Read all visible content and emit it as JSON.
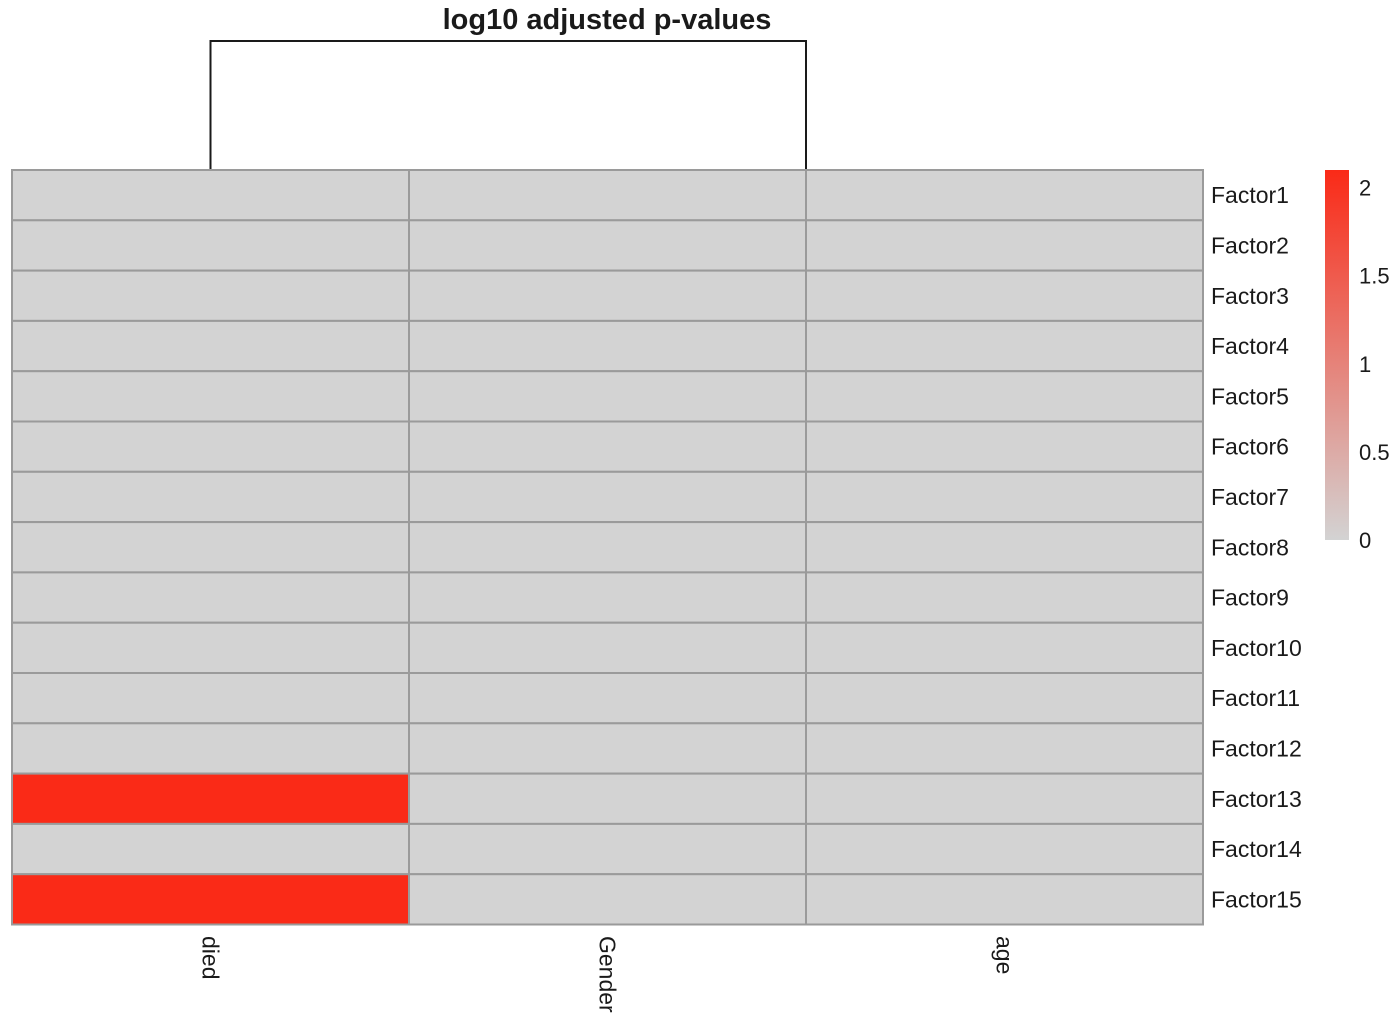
{
  "chart_data": {
    "type": "heatmap",
    "title": "log10 adjusted p-values",
    "columns": [
      "died",
      "Gender",
      "age"
    ],
    "rows": [
      "Factor1",
      "Factor2",
      "Factor3",
      "Factor4",
      "Factor5",
      "Factor6",
      "Factor7",
      "Factor8",
      "Factor9",
      "Factor10",
      "Factor11",
      "Factor12",
      "Factor13",
      "Factor14",
      "Factor15"
    ],
    "values": [
      [
        0,
        0,
        0
      ],
      [
        0,
        0,
        0
      ],
      [
        0,
        0,
        0
      ],
      [
        0,
        0,
        0
      ],
      [
        0,
        0,
        0
      ],
      [
        0,
        0,
        0
      ],
      [
        0,
        0,
        0
      ],
      [
        0,
        0,
        0
      ],
      [
        0,
        0,
        0
      ],
      [
        0,
        0,
        0
      ],
      [
        0,
        0,
        0
      ],
      [
        0,
        0,
        0
      ],
      [
        2.1,
        0,
        0
      ],
      [
        0,
        0,
        0
      ],
      [
        2.1,
        0,
        0
      ]
    ],
    "column_dendrogram": {
      "merges": [
        [
          1,
          2
        ],
        [
          0,
          "1-2"
        ]
      ]
    },
    "colorscale": {
      "low_color": "#d3d3d3",
      "high_color": "#fa2a17",
      "range": [
        0,
        2.1
      ],
      "ticks": [
        0,
        0.5,
        1,
        1.5,
        2
      ],
      "tick_labels": [
        "0",
        "0.5",
        "1",
        "1.5",
        "2"
      ]
    },
    "legend_position": "right"
  }
}
